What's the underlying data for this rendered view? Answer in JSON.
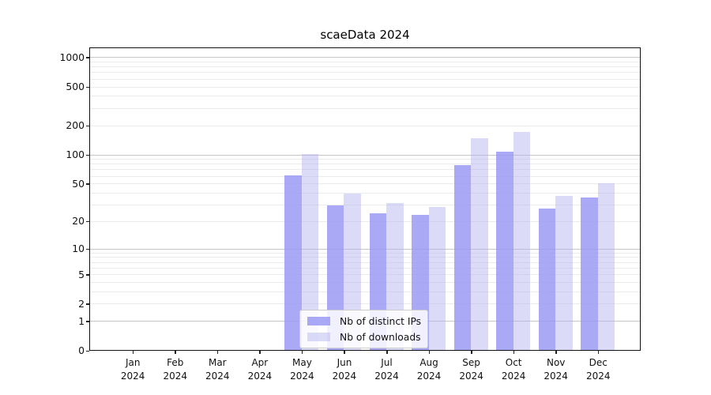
{
  "title": "scaeData 2024",
  "chart_data": {
    "type": "bar",
    "title": "scaeData 2024",
    "categories": [
      "Jan 2024",
      "Feb 2024",
      "Mar 2024",
      "Apr 2024",
      "May 2024",
      "Jun 2024",
      "Jul 2024",
      "Aug 2024",
      "Sep 2024",
      "Oct 2024",
      "Nov 2024",
      "Dec 2024"
    ],
    "series": [
      {
        "name": "Nb of distinct IPs",
        "color": "#a9a9f6",
        "fill": "rgba(150,150,244,0.82)",
        "values": [
          0,
          0,
          0,
          0,
          60,
          29,
          24,
          23,
          77,
          106,
          27,
          35
        ]
      },
      {
        "name": "Nb of downloads",
        "color": "#dcdcf9",
        "fill": "rgba(176,176,240,0.45)",
        "values": [
          0,
          0,
          0,
          0,
          101,
          39,
          31,
          28,
          147,
          170,
          37,
          50
        ]
      }
    ],
    "xlabel": "",
    "ylabel": "",
    "yscale": "log1p",
    "ylim": [
      0,
      1270
    ],
    "yticks": [
      {
        "value": 1000,
        "label": "1000"
      },
      {
        "value": 500,
        "label": "500"
      },
      {
        "value": 200,
        "label": "200"
      },
      {
        "value": 100,
        "label": "100"
      },
      {
        "value": 50,
        "label": "50"
      },
      {
        "value": 20,
        "label": "20"
      },
      {
        "value": 10,
        "label": "10"
      },
      {
        "value": 5,
        "label": "5"
      },
      {
        "value": 2,
        "label": "2"
      },
      {
        "value": 1,
        "label": "1"
      },
      {
        "value": 0,
        "label": "0"
      }
    ],
    "grid": true,
    "grid_major_color": "#c6c6c6",
    "grid_minor_color": "#ebebeb",
    "legend_position": "lower center inside"
  }
}
